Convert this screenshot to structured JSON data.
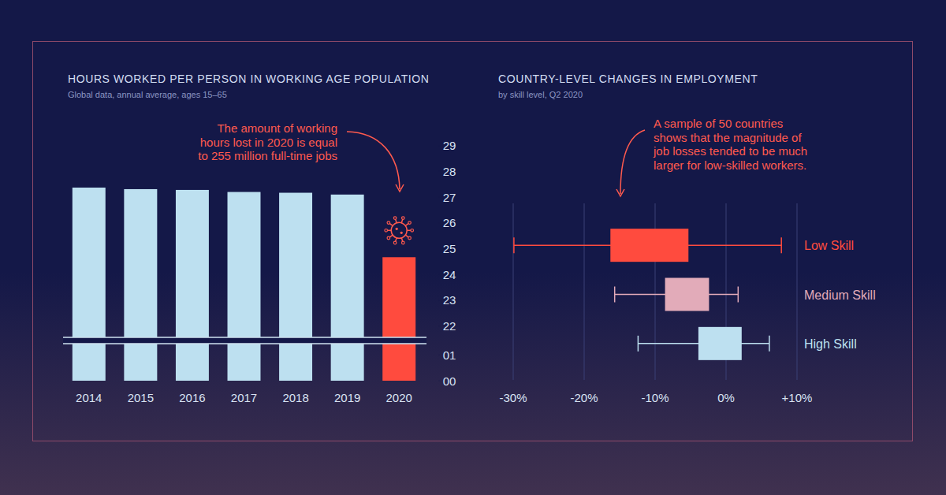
{
  "chart_data": [
    {
      "type": "bar",
      "title": "HOURS WORKED PER PERSON IN WORKING AGE POPULATION",
      "subtitle": "Global data, annual average, ages 15–65",
      "annotation": [
        "The amount of working",
        "hours lost in 2020 is equal",
        "to 255 million full-time jobs"
      ],
      "categories": [
        "2014",
        "2015",
        "2016",
        "2017",
        "2018",
        "2019",
        "2020"
      ],
      "values": [
        27.37,
        27.31,
        27.28,
        27.2,
        27.17,
        27.1,
        24.67
      ],
      "colors": [
        "#bde0f0",
        "#bde0f0",
        "#bde0f0",
        "#bde0f0",
        "#bde0f0",
        "#bde0f0",
        "#ff4b3e"
      ],
      "ylim": [
        0,
        29
      ],
      "yticks": [
        {
          "value": 0,
          "label": "00"
        },
        {
          "value": 1,
          "label": "01"
        },
        22,
        23,
        24,
        25,
        26,
        27,
        28,
        29
      ]
    },
    {
      "type": "box",
      "title": "COUNTRY-LEVEL CHANGES IN EMPLOYMENT",
      "subtitle": "by skill level, Q2 2020",
      "annotation": [
        "A sample of 50 countries",
        "shows that the magnitude of",
        "job losses tended to be much",
        "larger for low-skilled workers."
      ],
      "orientation": "horizontal",
      "categories": [
        "Low Skill",
        "Medium Skill",
        "High Skill"
      ],
      "min": [
        -29.9,
        -15.7,
        -12.4
      ],
      "q1": [
        -16.3,
        -8.6,
        -3.9
      ],
      "q3": [
        -5.3,
        -2.4,
        2.2
      ],
      "max": [
        7.8,
        1.7,
        6.1
      ],
      "colors": [
        "#ff4b3e",
        "#e2abb9",
        "#bde0f0"
      ],
      "xlim": [
        -30,
        10
      ],
      "xticks": [
        {
          "value": -30,
          "label": "-30%"
        },
        {
          "value": -20,
          "label": "-20%"
        },
        {
          "value": -10,
          "label": "-10%"
        },
        {
          "value": 0,
          "label": "0%"
        },
        {
          "value": 10,
          "label": "+10%"
        }
      ]
    }
  ]
}
